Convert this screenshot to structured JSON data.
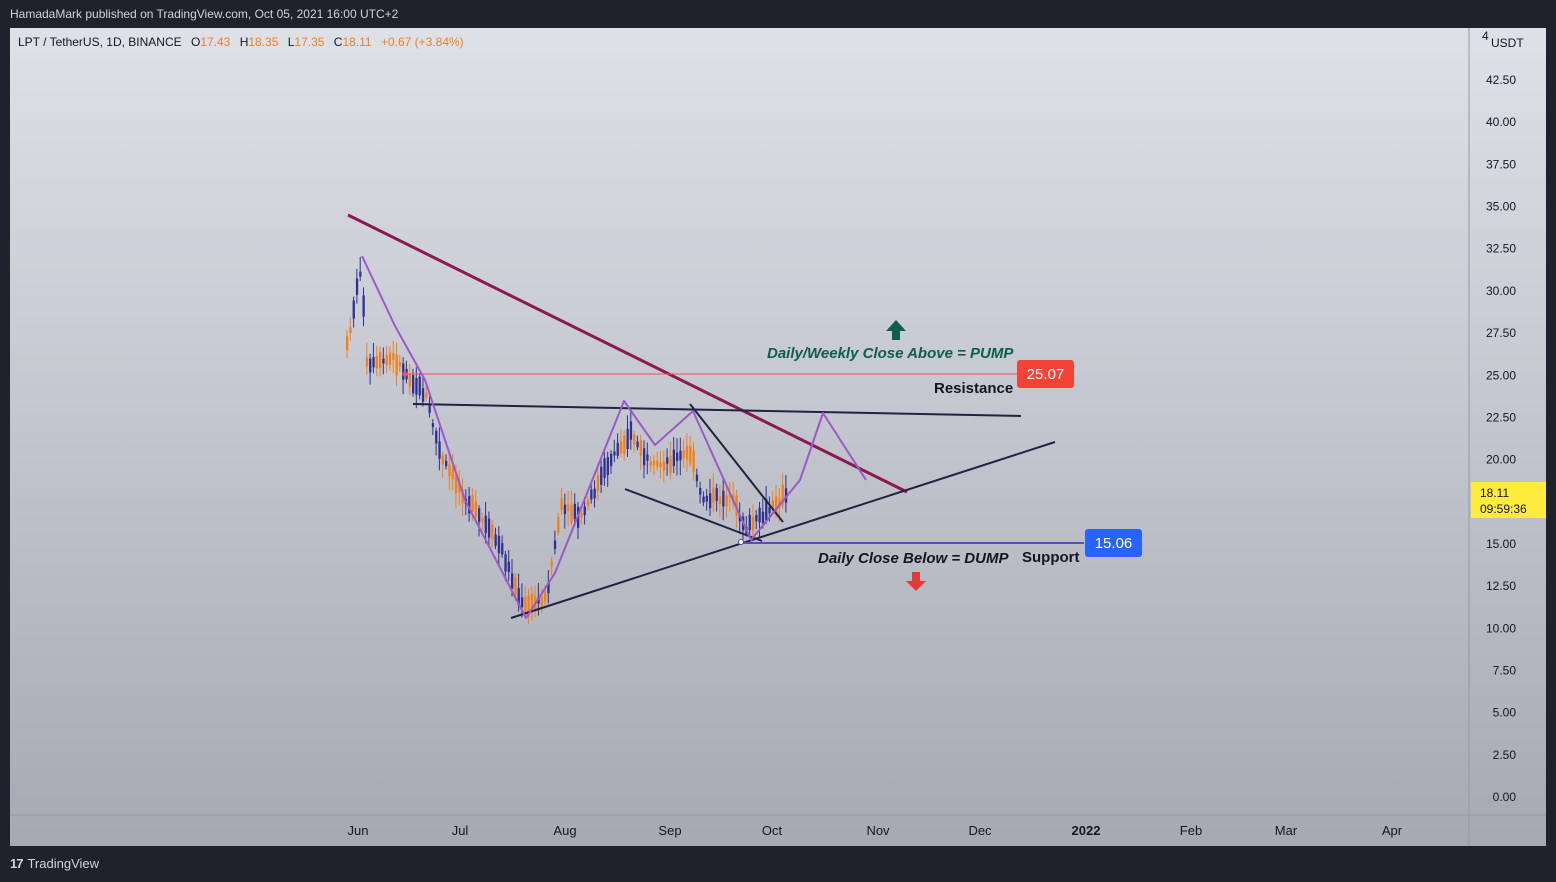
{
  "header": {
    "published": "HamadaMark published on TradingView.com, Oct 05, 2021 16:00 UTC+2"
  },
  "legend": {
    "symbol": "LPT / TetherUS, 1D, BINANCE",
    "o_label": "O",
    "o_value": "17.43",
    "h_label": "H",
    "h_value": "18.35",
    "l_label": "L",
    "l_value": "17.35",
    "c_label": "C",
    "c_value": "18.11",
    "change": "+0.67 (+3.84%)"
  },
  "price_axis": {
    "currency": "USDT",
    "top_partial": "4",
    "ticks": [
      "42.50",
      "40.00",
      "37.50",
      "35.00",
      "32.50",
      "30.00",
      "27.50",
      "25.00",
      "22.50",
      "20.00",
      "15.00",
      "12.50",
      "10.00",
      "7.50",
      "5.00",
      "2.50",
      "0.00"
    ]
  },
  "time_axis": {
    "labels": [
      "Jun",
      "Jul",
      "Aug",
      "Sep",
      "Oct",
      "Nov",
      "Dec",
      "2022",
      "Feb",
      "Mar",
      "Apr"
    ]
  },
  "current_price": {
    "value": "18.11",
    "countdown": "09:59:36",
    "color": "#ffeb3b"
  },
  "annotations": {
    "pump": "Daily/Weekly Close Above = PUMP",
    "dump": "Daily Close Below = DUMP",
    "resistance": "Resistance",
    "support": "Support",
    "resistance_price": "25.07",
    "support_price": "15.06"
  },
  "colors": {
    "up_candle": "#f57f17",
    "down_candle": "#2e3192",
    "trendline": "#8b1a52",
    "pattern": "#9c59c7",
    "lines": "#1e2442",
    "resistance_badge": "#f44336",
    "support_badge": "#2962ff",
    "pump_arrow": "#0d5e4d",
    "dump_arrow": "#e53935"
  },
  "footer": {
    "brand": "TradingView"
  }
}
